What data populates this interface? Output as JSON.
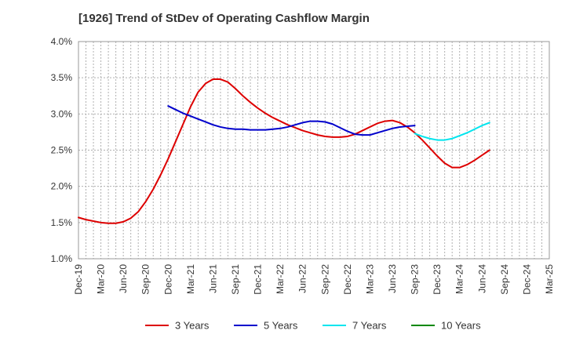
{
  "chart_data": {
    "type": "line",
    "title": "[1926]  Trend of StDev of Operating Cashflow Margin",
    "xlabel": "",
    "ylabel": "",
    "ylim": [
      1.0,
      4.0
    ],
    "y_ticks": [
      "1.0%",
      "1.5%",
      "2.0%",
      "2.5%",
      "3.0%",
      "3.5%",
      "4.0%"
    ],
    "y_tick_values": [
      1.0,
      1.5,
      2.0,
      2.5,
      3.0,
      3.5,
      4.0
    ],
    "x_categories": [
      "Dec-19",
      "Mar-20",
      "Jun-20",
      "Sep-20",
      "Dec-20",
      "Mar-21",
      "Jun-21",
      "Sep-21",
      "Dec-21",
      "Mar-22",
      "Jun-22",
      "Sep-22",
      "Dec-22",
      "Mar-23",
      "Jun-23",
      "Sep-23",
      "Dec-23",
      "Mar-24",
      "Jun-24",
      "Sep-24",
      "Dec-24",
      "Mar-25"
    ],
    "x_ticks": [
      "Dec-19",
      "Mar-20",
      "Jun-20",
      "Sep-20",
      "Dec-20",
      "Mar-21",
      "Jun-21",
      "Sep-21",
      "Dec-21",
      "Mar-22",
      "Jun-22",
      "Sep-22",
      "Dec-22",
      "Mar-23",
      "Jun-23",
      "Sep-23",
      "Dec-23",
      "Mar-24",
      "Jun-24",
      "Sep-24",
      "Dec-24",
      "Mar-25"
    ],
    "grid": true,
    "legend_position": "bottom",
    "series": [
      {
        "name": "3 Years",
        "color": "#dd0000",
        "points": [
          [
            "Dec-19",
            1.57
          ],
          [
            "Jan-20",
            1.54
          ],
          [
            "Feb-20",
            1.52
          ],
          [
            "Mar-20",
            1.5
          ],
          [
            "Apr-20",
            1.49
          ],
          [
            "May-20",
            1.49
          ],
          [
            "Jun-20",
            1.51
          ],
          [
            "Jul-20",
            1.56
          ],
          [
            "Aug-20",
            1.65
          ],
          [
            "Sep-20",
            1.79
          ],
          [
            "Oct-20",
            1.96
          ],
          [
            "Nov-20",
            2.16
          ],
          [
            "Dec-20",
            2.38
          ],
          [
            "Jan-21",
            2.62
          ],
          [
            "Feb-21",
            2.86
          ],
          [
            "Mar-21",
            3.1
          ],
          [
            "Apr-21",
            3.3
          ],
          [
            "May-21",
            3.42
          ],
          [
            "Jun-21",
            3.48
          ],
          [
            "Jul-21",
            3.48
          ],
          [
            "Aug-21",
            3.44
          ],
          [
            "Sep-21",
            3.35
          ],
          [
            "Oct-21",
            3.25
          ],
          [
            "Nov-21",
            3.16
          ],
          [
            "Dec-21",
            3.08
          ],
          [
            "Jan-22",
            3.01
          ],
          [
            "Feb-22",
            2.95
          ],
          [
            "Mar-22",
            2.9
          ],
          [
            "Apr-22",
            2.85
          ],
          [
            "May-22",
            2.81
          ],
          [
            "Jun-22",
            2.77
          ],
          [
            "Jul-22",
            2.74
          ],
          [
            "Aug-22",
            2.71
          ],
          [
            "Sep-22",
            2.69
          ],
          [
            "Oct-22",
            2.68
          ],
          [
            "Nov-22",
            2.68
          ],
          [
            "Dec-22",
            2.69
          ],
          [
            "Jan-23",
            2.72
          ],
          [
            "Feb-23",
            2.77
          ],
          [
            "Mar-23",
            2.82
          ],
          [
            "Apr-23",
            2.87
          ],
          [
            "May-23",
            2.9
          ],
          [
            "Jun-23",
            2.91
          ],
          [
            "Jul-23",
            2.88
          ],
          [
            "Aug-23",
            2.82
          ],
          [
            "Sep-23",
            2.74
          ],
          [
            "Oct-23",
            2.64
          ],
          [
            "Nov-23",
            2.53
          ],
          [
            "Dec-23",
            2.42
          ],
          [
            "Jan-24",
            2.32
          ],
          [
            "Feb-24",
            2.26
          ],
          [
            "Mar-24",
            2.26
          ],
          [
            "Apr-24",
            2.3
          ],
          [
            "May-24",
            2.36
          ],
          [
            "Jun-24",
            2.43
          ],
          [
            "Jul-24",
            2.5
          ]
        ]
      },
      {
        "name": "5 Years",
        "color": "#0000cc",
        "points": [
          [
            "Dec-20",
            3.11
          ],
          [
            "Jan-21",
            3.06
          ],
          [
            "Feb-21",
            3.01
          ],
          [
            "Mar-21",
            2.97
          ],
          [
            "Apr-21",
            2.93
          ],
          [
            "May-21",
            2.89
          ],
          [
            "Jun-21",
            2.85
          ],
          [
            "Jul-21",
            2.82
          ],
          [
            "Aug-21",
            2.8
          ],
          [
            "Sep-21",
            2.79
          ],
          [
            "Oct-21",
            2.79
          ],
          [
            "Nov-21",
            2.78
          ],
          [
            "Dec-21",
            2.78
          ],
          [
            "Jan-22",
            2.78
          ],
          [
            "Feb-22",
            2.79
          ],
          [
            "Mar-22",
            2.8
          ],
          [
            "Apr-22",
            2.82
          ],
          [
            "May-22",
            2.85
          ],
          [
            "Jun-22",
            2.88
          ],
          [
            "Jul-22",
            2.9
          ],
          [
            "Aug-22",
            2.9
          ],
          [
            "Sep-22",
            2.89
          ],
          [
            "Oct-22",
            2.86
          ],
          [
            "Nov-22",
            2.81
          ],
          [
            "Dec-22",
            2.76
          ],
          [
            "Jan-23",
            2.72
          ],
          [
            "Feb-23",
            2.71
          ],
          [
            "Mar-23",
            2.71
          ],
          [
            "Apr-23",
            2.74
          ],
          [
            "May-23",
            2.77
          ],
          [
            "Jun-23",
            2.8
          ],
          [
            "Jul-23",
            2.82
          ],
          [
            "Aug-23",
            2.83
          ],
          [
            "Sep-23",
            2.84
          ]
        ]
      },
      {
        "name": "7 Years",
        "color": "#00e5ee",
        "points": [
          [
            "Sep-23",
            2.73
          ],
          [
            "Oct-23",
            2.69
          ],
          [
            "Nov-23",
            2.66
          ],
          [
            "Dec-23",
            2.64
          ],
          [
            "Jan-24",
            2.64
          ],
          [
            "Feb-24",
            2.66
          ],
          [
            "Mar-24",
            2.7
          ],
          [
            "Apr-24",
            2.74
          ],
          [
            "May-24",
            2.79
          ],
          [
            "Jun-24",
            2.84
          ],
          [
            "Jul-24",
            2.88
          ]
        ]
      },
      {
        "name": "10 Years",
        "color": "#008800",
        "points": []
      }
    ]
  }
}
